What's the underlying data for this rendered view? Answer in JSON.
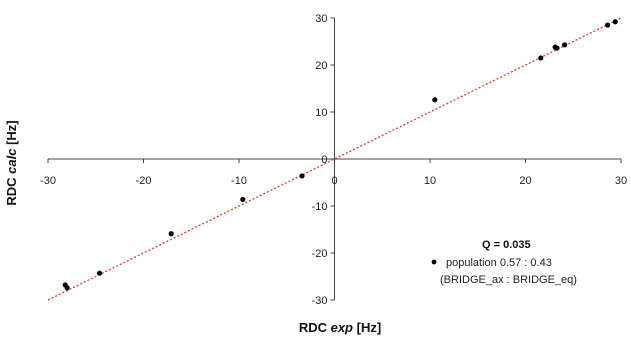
{
  "chart_data": {
    "type": "scatter",
    "xlabel_prefix": "RDC ",
    "xlabel_italic": "exp",
    "xlabel_suffix": " [Hz]",
    "ylabel_prefix": "RDC ",
    "ylabel_italic": "calc",
    "ylabel_suffix": " [Hz]",
    "xlim": [
      -30,
      30
    ],
    "ylim": [
      -30,
      30
    ],
    "xticks": [
      -30,
      -20,
      -10,
      0,
      10,
      20,
      30
    ],
    "yticks": [
      -30,
      -20,
      -10,
      0,
      10,
      20,
      30
    ],
    "grid": false,
    "annotation": "Q = 0.035",
    "series": [
      {
        "name_line1": "population  0.57 : 0.43",
        "name_line2": "(BRIDGE_ax : BRIDGE_eq)",
        "color": "#000000",
        "points": [
          {
            "x": -28.2,
            "y": -26.8
          },
          {
            "x": -28.0,
            "y": -27.4
          },
          {
            "x": -24.6,
            "y": -24.3
          },
          {
            "x": -17.1,
            "y": -15.9
          },
          {
            "x": -9.6,
            "y": -8.6
          },
          {
            "x": -3.4,
            "y": -3.6
          },
          {
            "x": 10.5,
            "y": 12.6
          },
          {
            "x": 21.6,
            "y": 21.5
          },
          {
            "x": 23.1,
            "y": 23.8
          },
          {
            "x": 23.3,
            "y": 23.6
          },
          {
            "x": 24.1,
            "y": 24.3
          },
          {
            "x": 28.6,
            "y": 28.5
          },
          {
            "x": 29.4,
            "y": 29.2
          }
        ]
      }
    ],
    "fit_line": {
      "x": [
        -30,
        30
      ],
      "y": [
        -30,
        30
      ],
      "color": "#e33b2e",
      "style": "dotted"
    }
  }
}
